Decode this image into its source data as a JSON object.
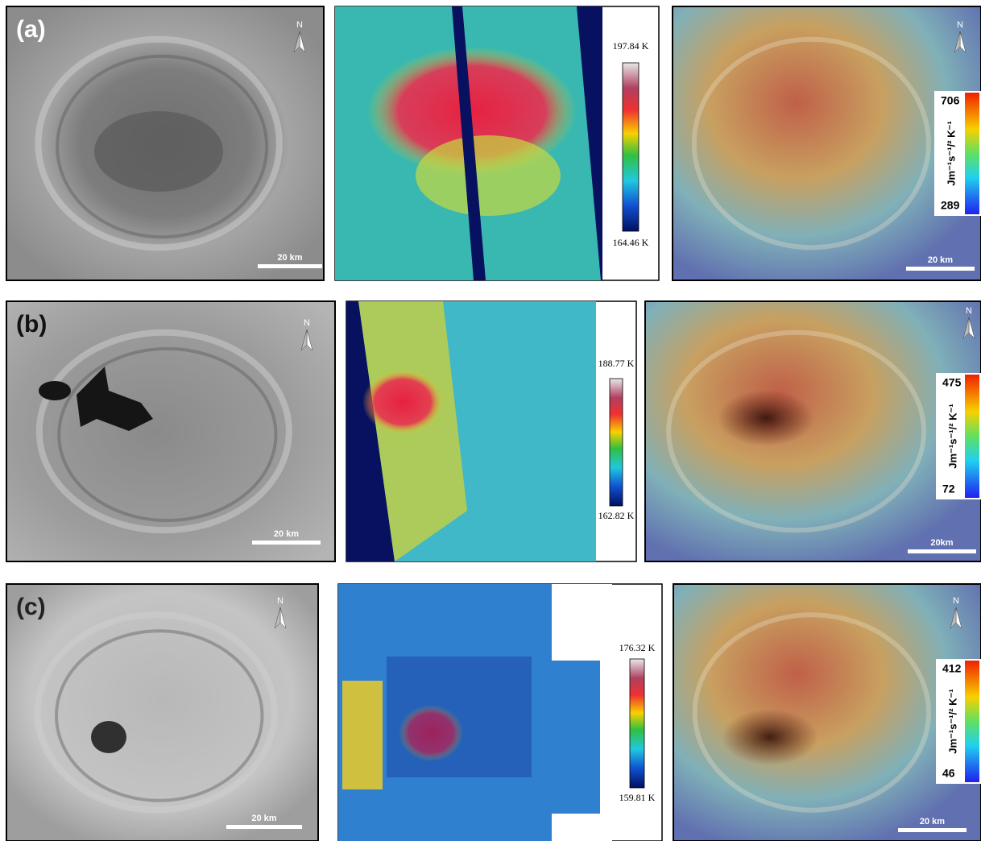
{
  "panels": [
    {
      "label": "(a)",
      "north": "N",
      "scale_bar": "20 km",
      "temperature_max": "197.84 K",
      "temperature_min": "164.46 K",
      "north_2": "N",
      "inertia_max": "706",
      "inertia_min": "289",
      "inertia_unit": "Jm⁻¹s⁻¹/² K⁻¹",
      "scale_bar_2": "20 km"
    },
    {
      "label": "(b)",
      "north": "N",
      "scale_bar": "20 km",
      "temperature_max": "188.77 K",
      "temperature_min": "162.82 K",
      "north_2": "N",
      "inertia_max": "475",
      "inertia_min": "72",
      "inertia_unit": "Jm⁻¹s⁻¹/² K⁻¹",
      "scale_bar_2": "20km"
    },
    {
      "label": "(c)",
      "north": "N",
      "scale_bar": "20 km",
      "temperature_max": "176.32 K",
      "temperature_min": "159.81 K",
      "north_2": "N",
      "inertia_max": "412",
      "inertia_min": "46",
      "inertia_unit": "Jm⁻¹s⁻¹/² K⁻¹",
      "scale_bar_2": "20 km"
    }
  ]
}
